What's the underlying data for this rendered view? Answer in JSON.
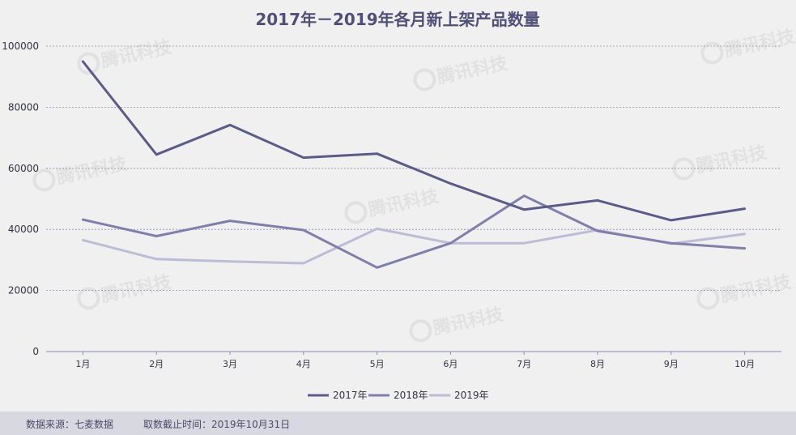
{
  "chart_data": {
    "type": "line",
    "title": "2017年－2019年各月新上架产品数量",
    "categories": [
      "1月",
      "2月",
      "3月",
      "4月",
      "5月",
      "6月",
      "7月",
      "8月",
      "9月",
      "10月"
    ],
    "series": [
      {
        "name": "2017年",
        "color": "#5b5b8a",
        "values": [
          95000,
          64500,
          74200,
          63500,
          64800,
          55000,
          46500,
          49500,
          43000,
          46800
        ]
      },
      {
        "name": "2018年",
        "color": "#7f7faa",
        "values": [
          43200,
          37800,
          42800,
          39800,
          27500,
          35500,
          51000,
          39500,
          35500,
          33800
        ]
      },
      {
        "name": "2019年",
        "color": "#bcbcd6",
        "values": [
          36500,
          30300,
          29500,
          28900,
          40200,
          35500,
          35500,
          39800,
          35300,
          38500
        ]
      }
    ],
    "yticks": [
      0,
      20000,
      40000,
      60000,
      80000,
      100000
    ],
    "ylim": [
      0,
      100000
    ],
    "grid": true,
    "legend": "bottom-center"
  },
  "watermark": {
    "text": "腾讯科技"
  },
  "footer": {
    "source": "数据来源：七麦数据",
    "cutoff": "取数截止时间：2019年10月31日"
  }
}
